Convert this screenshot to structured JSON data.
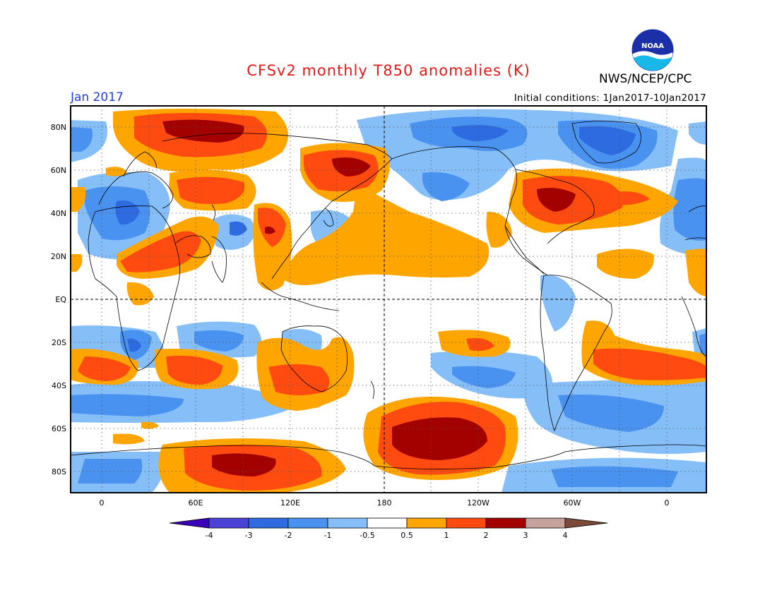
{
  "header": {
    "title": "CFSv2 monthly T850 anomalies (K)",
    "agency": "NWS/NCEP/CPC",
    "logo_text": "NOAA",
    "month": "Jan 2017",
    "initial_conditions": "Initial conditions: 1Jan2017-10Jan2017"
  },
  "axes": {
    "lat_labels": [
      "80N",
      "60N",
      "40N",
      "20N",
      "EQ",
      "20S",
      "40S",
      "60S",
      "80S"
    ],
    "lon_labels": [
      "0",
      "60E",
      "120E",
      "180",
      "120W",
      "60W",
      "0"
    ]
  },
  "colorbar": {
    "labels": [
      "-4",
      "-3",
      "-2",
      "-1",
      "-0.5",
      "0.5",
      "1",
      "2",
      "3",
      "4"
    ],
    "colors": [
      "#3a00b8",
      "#4a41d6",
      "#2f6be0",
      "#4a92f0",
      "#86bff8",
      "#ffffff",
      "#ffa500",
      "#ff4a10",
      "#a30000",
      "#c4a29b",
      "#7b4a3a"
    ]
  },
  "palette": {
    "ocean_white": "#ffffff",
    "light_blue": "#86bff8",
    "mid_blue": "#4a92f0",
    "dark_blue": "#2f6be0",
    "orange": "#ffa500",
    "red": "#ff4a10",
    "dark_red": "#a30000",
    "title_red": "#e81818",
    "month_blue": "#1f3fd6"
  }
}
